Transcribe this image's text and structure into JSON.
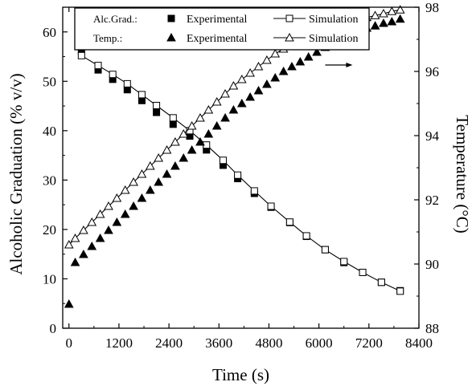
{
  "chart_data": {
    "type": "line",
    "xlabel": "Time (s)",
    "ylabel_left": "Alcoholic Graduation (% v/v)",
    "ylabel_right": "Temperature (°C)",
    "x_ticks": [
      "0",
      "1200",
      "2400",
      "3600",
      "4800",
      "6000",
      "7200",
      "8400"
    ],
    "y_left_ticks": [
      "0",
      "10",
      "20",
      "30",
      "40",
      "50",
      "60"
    ],
    "y_right_ticks": [
      "88",
      "90",
      "92",
      "94",
      "96",
      "98"
    ],
    "xlim": [
      -150,
      8400
    ],
    "ylim_left": [
      0,
      65
    ],
    "ylim_right": [
      88,
      98
    ],
    "legend": {
      "placement": "top-center",
      "rows": [
        {
          "label": "Alc.Grad.:",
          "experimental": "Experimental",
          "simulation": "Simulation"
        },
        {
          "label": "Temp.:",
          "experimental": "Experimental",
          "simulation": "Simulation"
        }
      ]
    },
    "arrow": {
      "direction": "right",
      "points_to_axis": "right",
      "x": 6150,
      "y_right": 96.2
    },
    "series": [
      {
        "name": "Experimental",
        "group": "Alc.Grad.",
        "axis": "left",
        "marker": "filled-square",
        "x": [
          300,
          700,
          1050,
          1400,
          1750,
          2100,
          2500,
          2900,
          3300,
          3700,
          4050,
          4450,
          4850,
          5300,
          5700,
          6150,
          6600,
          7050,
          7500,
          7950
        ],
        "y": [
          56.2,
          52.3,
          50.4,
          48.3,
          46.1,
          43.7,
          41.3,
          38.9,
          36.1,
          33.0,
          30.3,
          27.3,
          24.5,
          21.4,
          18.6,
          15.9,
          13.3,
          11.3,
          9.3,
          7.6
        ]
      },
      {
        "name": "Simulation",
        "group": "Alc.Grad.",
        "axis": "left",
        "marker": "open-square",
        "x": [
          300,
          700,
          1050,
          1400,
          1750,
          2100,
          2500,
          2900,
          3300,
          3700,
          4050,
          4450,
          4850,
          5300,
          5700,
          6150,
          6600,
          7050,
          7500,
          7950
        ],
        "y": [
          55.2,
          53.2,
          51.4,
          49.5,
          47.3,
          45.1,
          42.6,
          40.0,
          37.1,
          34.0,
          31.0,
          27.8,
          24.7,
          21.5,
          18.7,
          15.9,
          13.5,
          11.3,
          9.3,
          7.5
        ]
      },
      {
        "name": "Experimental",
        "group": "Temp.",
        "axis": "right",
        "marker": "filled-triangle",
        "x": [
          0,
          150,
          350,
          550,
          750,
          950,
          1150,
          1350,
          1550,
          1750,
          1950,
          2150,
          2350,
          2550,
          2750,
          2950,
          3150,
          3350,
          3550,
          3750,
          3950,
          4150,
          4350,
          4550,
          4750,
          4950,
          5150,
          5350,
          5550,
          5750,
          5950,
          6150,
          6350,
          6550,
          6750,
          6950,
          7150,
          7350,
          7550,
          7750,
          7950
        ],
        "y": [
          88.75,
          90.05,
          90.3,
          90.55,
          90.8,
          91.05,
          91.3,
          91.55,
          91.8,
          92.05,
          92.3,
          92.55,
          92.8,
          93.05,
          93.3,
          93.55,
          93.8,
          94.05,
          94.3,
          94.55,
          94.8,
          95.0,
          95.2,
          95.4,
          95.6,
          95.8,
          96.0,
          96.15,
          96.3,
          96.45,
          96.6,
          96.75,
          96.9,
          97.05,
          97.15,
          97.25,
          97.35,
          97.42,
          97.5,
          97.55,
          97.63
        ]
      },
      {
        "name": "Simulation",
        "group": "Temp.",
        "axis": "right",
        "marker": "open-triangle",
        "x": [
          0,
          150,
          350,
          550,
          750,
          950,
          1150,
          1350,
          1550,
          1750,
          1950,
          2150,
          2350,
          2550,
          2750,
          2950,
          3150,
          3350,
          3550,
          3750,
          3950,
          4150,
          4350,
          4550,
          4750,
          4950,
          5150,
          5350,
          5550,
          5750,
          5950,
          6150,
          6350,
          6550,
          6750,
          6950,
          7150,
          7350,
          7550,
          7750,
          7950
        ],
        "y": [
          90.6,
          90.8,
          91.05,
          91.3,
          91.55,
          91.8,
          92.05,
          92.3,
          92.55,
          92.8,
          93.05,
          93.3,
          93.55,
          93.8,
          94.05,
          94.3,
          94.55,
          94.8,
          95.05,
          95.3,
          95.55,
          95.75,
          95.95,
          96.15,
          96.35,
          96.55,
          96.7,
          96.85,
          96.95,
          97.05,
          97.15,
          97.25,
          97.35,
          97.45,
          97.55,
          97.62,
          97.68,
          97.74,
          97.8,
          97.87,
          97.92
        ]
      }
    ]
  }
}
